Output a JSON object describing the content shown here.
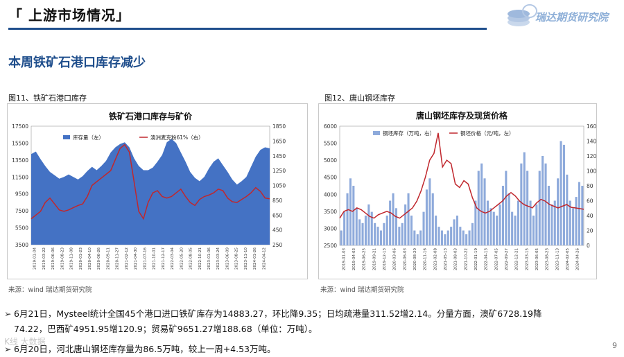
{
  "header": {
    "title": "「 上游市场情况」",
    "logo_text": "瑞达期货研究院"
  },
  "section": {
    "heading": "本周铁矿石港口库存减少"
  },
  "figures": [
    {
      "label": "图11、铁矿石港口库存",
      "source": "来源：wind   瑞达期货研究院"
    },
    {
      "label": "图12、唐山钢坯库存",
      "source": "来源：wind   瑞达期货研究院"
    }
  ],
  "bullets": [
    "6月21日，Mysteel统计全国45个港口进口铁矿库存为14883.27，环比降9.35；日均疏港量311.52增2.14。分量方面，澳矿6728.19降",
    "74.22，巴西矿4951.95增120.9；贸易矿9651.27增188.68（单位：万吨）。",
    "6月20日，河北唐山钢坯库存量为86.5万吨，较上一周+4.53万吨。"
  ],
  "page_number": "9",
  "watermark": "K线 大数据",
  "colors": {
    "brand_blue": "#1f4e8c",
    "area_blue": "#4472c4",
    "bar_blue": "#8eaadb",
    "line_red": "#c0272d"
  },
  "chart_data": [
    {
      "type": "area",
      "title": "铁矿石港口库存与矿价",
      "legend": [
        "库存量（左）",
        "澳洲麦克粉61%（右）"
      ],
      "legend_position": "top",
      "y_left": {
        "ticks": [
          "17500",
          "15500",
          "13500",
          "11500",
          "9500",
          "7500",
          "5500",
          "3500"
        ],
        "ylim": [
          3500,
          17500
        ]
      },
      "y_right": {
        "ticks": [
          "1850",
          "1650",
          "1450",
          "1250",
          "1050",
          "850",
          "650",
          "450",
          "250"
        ],
        "ylim": [
          250,
          1850
        ]
      },
      "x_ticks": [
        "2019-01-04",
        "2019-03-22",
        "2019-06-06",
        "2019-08-23",
        "2019-11-08",
        "2020-01-23",
        "2020-04-10",
        "2020-06-26",
        "2020-09-11",
        "2020-11-27",
        "2021-02-12",
        "2021-04-30",
        "2021-07-16",
        "2021-10-01",
        "2021-12-17",
        "2022-03-04",
        "2022-05-20",
        "2022-08-05",
        "2022-10-21",
        "2023-01-06",
        "2023-03-24",
        "2023-06-09",
        "2023-08-25",
        "2023-11-10",
        "2024-01-26",
        "2024-04-12"
      ],
      "series": [
        {
          "name": "库存量（左）",
          "axis": "left",
          "values": [
            14200,
            14500,
            13600,
            12800,
            12100,
            11700,
            11300,
            11500,
            11800,
            11500,
            11200,
            11600,
            12200,
            12700,
            12300,
            12800,
            13400,
            14400,
            15000,
            15400,
            15600,
            15000,
            13700,
            12800,
            12300,
            12300,
            12600,
            13300,
            14100,
            15600,
            16000,
            15500,
            14400,
            13300,
            12100,
            11400,
            11000,
            11500,
            12500,
            13300,
            13700,
            12900,
            12100,
            11200,
            10600,
            11000,
            11500,
            12700,
            13900,
            14700,
            15000,
            14883
          ]
        },
        {
          "name": "澳洲麦克粉61%（右）",
          "axis": "right",
          "values": [
            600,
            650,
            700,
            820,
            880,
            800,
            720,
            700,
            720,
            750,
            780,
            800,
            900,
            1050,
            1100,
            1150,
            1200,
            1250,
            1400,
            1550,
            1600,
            1500,
            1100,
            700,
            600,
            820,
            950,
            980,
            900,
            880,
            900,
            950,
            1000,
            900,
            820,
            780,
            860,
            900,
            920,
            950,
            1000,
            980,
            880,
            830,
            820,
            860,
            900,
            950,
            1020,
            970,
            880,
            870
          ]
        }
      ]
    },
    {
      "type": "bar",
      "title": "唐山钢坯库存及现货价格",
      "legend": [
        "钢坯库存（万吨，右）",
        "钢坯价格（元/吨，左）"
      ],
      "legend_position": "top",
      "y_left": {
        "ticks": [
          "6000",
          "5500",
          "5000",
          "4500",
          "4000",
          "3500",
          "3000",
          "2500"
        ],
        "ylim": [
          2500,
          6000
        ]
      },
      "y_right": {
        "ticks": [
          "160",
          "140",
          "120",
          "100",
          "80",
          "60",
          "40",
          "20",
          "0"
        ],
        "ylim": [
          0,
          160
        ]
      },
      "x_ticks": [
        "2019-01-03",
        "2019-04-03",
        "2019-06-25",
        "2019-09-21",
        "2019-12-13",
        "2020-03-06",
        "2020-06-03",
        "2020-08-20",
        "2020-11-16",
        "2021-02-08",
        "2021-05-13",
        "2021-08-03",
        "2021-10-22",
        "2022-01-19",
        "2022-04-13",
        "2022-07-05",
        "2022-09-27",
        "2022-12-21",
        "2023-03-15",
        "2023-06-05",
        "2023-08-23",
        "2023-11-13",
        "2024-02-05",
        "2024-04-26"
      ],
      "series": [
        {
          "name": "钢坯库存（万吨，右）",
          "axis": "right",
          "values": [
            20,
            45,
            70,
            90,
            80,
            50,
            35,
            30,
            40,
            55,
            45,
            30,
            25,
            20,
            30,
            40,
            60,
            70,
            50,
            25,
            30,
            55,
            70,
            40,
            20,
            15,
            20,
            45,
            75,
            90,
            70,
            40,
            25,
            20,
            15,
            20,
            25,
            35,
            40,
            25,
            20,
            15,
            20,
            30,
            60,
            100,
            110,
            90,
            60,
            50,
            45,
            40,
            55,
            80,
            100,
            70,
            45,
            40,
            60,
            110,
            125,
            100,
            60,
            40,
            55,
            100,
            120,
            110,
            80,
            55,
            60,
            90,
            140,
            135,
            95,
            60,
            50,
            65,
            85,
            80
          ]
        },
        {
          "name": "钢坯价格（元/吨，左）",
          "axis": "left",
          "values": [
            3300,
            3500,
            3550,
            3500,
            3600,
            3550,
            3450,
            3350,
            3300,
            3400,
            3450,
            3500,
            3450,
            3350,
            3300,
            3400,
            3500,
            3600,
            3800,
            4100,
            4500,
            5000,
            5200,
            5800,
            4800,
            5000,
            4900,
            4300,
            4200,
            4400,
            4300,
            3900,
            3600,
            3500,
            3450,
            3500,
            3600,
            3700,
            3800,
            3950,
            4050,
            3950,
            3800,
            3700,
            3650,
            3600,
            3750,
            3850,
            3800,
            3700,
            3650,
            3600,
            3650,
            3700,
            3620,
            3600,
            3580,
            3560
          ]
        }
      ]
    }
  ]
}
